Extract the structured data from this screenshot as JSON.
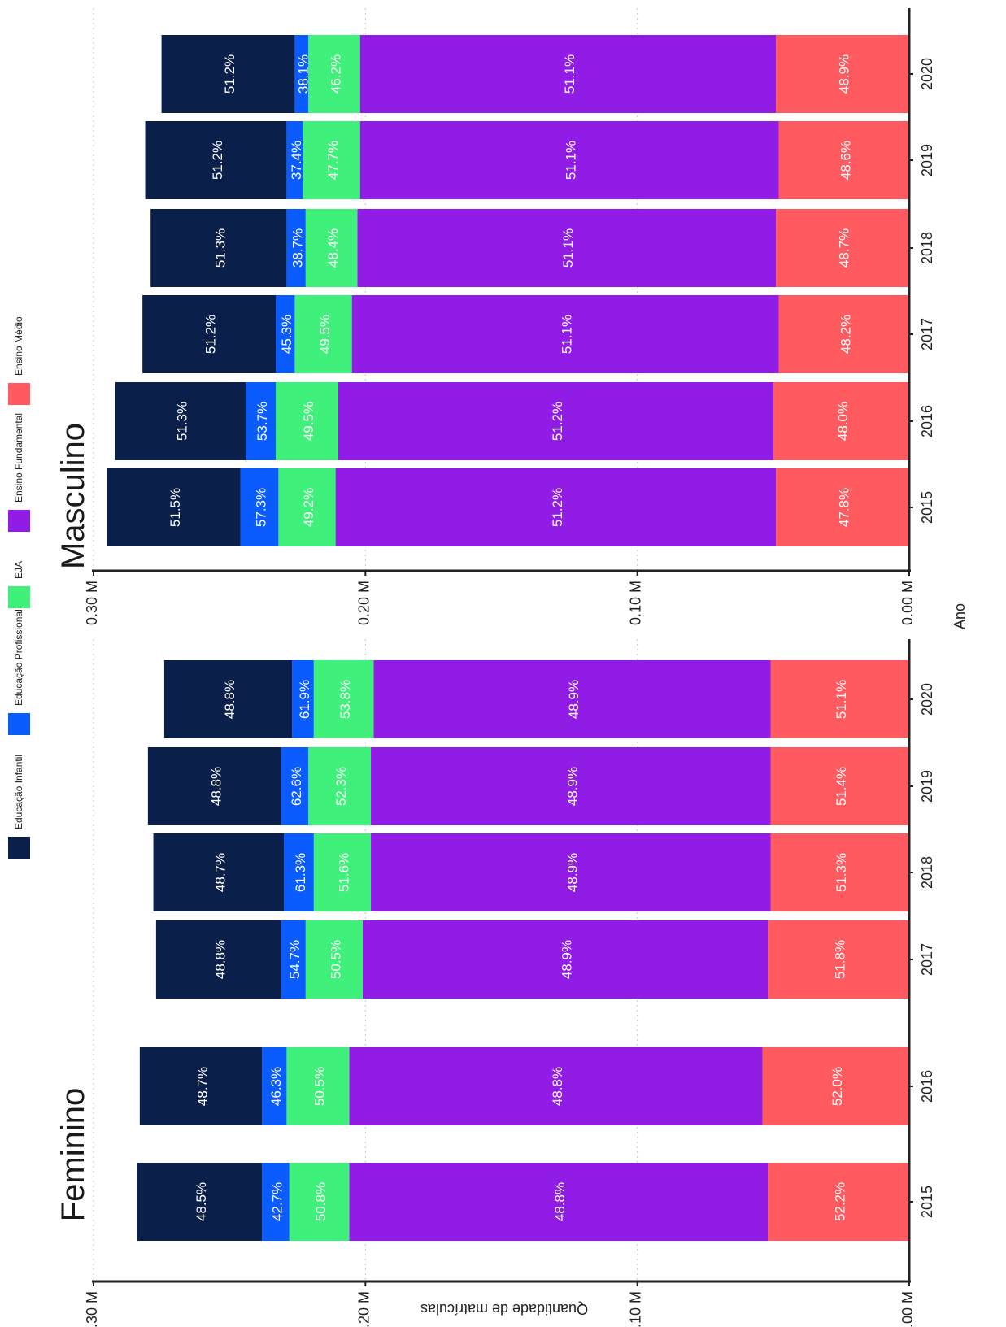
{
  "chart_data": {
    "type": "bar",
    "stacked": true,
    "orientation": "horizontal",
    "x_axis_title": "Quantidade de matrículas",
    "y_axis_title": "Ano",
    "x_ticks": [
      "0.00 M",
      "0.10 M",
      "0.20 M",
      "0.30 M"
    ],
    "xlim": [
      0,
      0.3
    ],
    "grid": true,
    "legend": {
      "position": "left",
      "items": [
        {
          "name": "Educação Infantil",
          "color": "#0b1f4b"
        },
        {
          "name": "Educação Profissional",
          "color": "#0b5cff"
        },
        {
          "name": "EJA",
          "color": "#3ff07a"
        },
        {
          "name": "Ensino Fundamental",
          "color": "#911ce6"
        },
        {
          "name": "Ensino Médio",
          "color": "#ff5a5f"
        }
      ]
    },
    "panels": [
      {
        "title": "Feminino",
        "categories": [
          "2015",
          "2016",
          "2017",
          "2018",
          "2019",
          "2020"
        ],
        "series": [
          {
            "name": "Ensino Médio",
            "color": "#ff5a5f",
            "values": [
              0.052,
              0.054,
              0.052,
              0.051,
              0.051,
              0.051
            ],
            "labels": [
              "52.2%",
              "52.0%",
              "51.8%",
              "51.3%",
              "51.4%",
              "51.1%"
            ]
          },
          {
            "name": "Ensino Fundamental",
            "color": "#911ce6",
            "values": [
              0.154,
              0.152,
              0.149,
              0.147,
              0.147,
              0.146
            ],
            "labels": [
              "48.8%",
              "48.8%",
              "48.9%",
              "48.9%",
              "48.9%",
              "48.9%"
            ]
          },
          {
            "name": "EJA",
            "color": "#3ff07a",
            "values": [
              0.022,
              0.023,
              0.021,
              0.021,
              0.023,
              0.022
            ],
            "labels": [
              "50.8%",
              "50.5%",
              "50.5%",
              "51.6%",
              "52.3%",
              "53.8%"
            ]
          },
          {
            "name": "Educação Profissional",
            "color": "#0b5cff",
            "values": [
              0.01,
              0.009,
              0.009,
              0.011,
              0.01,
              0.008
            ],
            "labels": [
              "42.7%",
              "46.3%",
              "54.7%",
              "61.3%",
              "62.6%",
              "61.9%"
            ]
          },
          {
            "name": "Educação Infantil",
            "color": "#0b1f4b",
            "values": [
              0.046,
              0.045,
              0.046,
              0.048,
              0.049,
              0.047
            ],
            "labels": [
              "48.5%",
              "48.7%",
              "48.8%",
              "48.7%",
              "48.8%",
              "48.8%"
            ]
          }
        ]
      },
      {
        "title": "Masculino",
        "categories": [
          "2015",
          "2016",
          "2017",
          "2018",
          "2019",
          "2020"
        ],
        "series": [
          {
            "name": "Ensino Médio",
            "color": "#ff5a5f",
            "values": [
              0.049,
              0.05,
              0.048,
              0.049,
              0.048,
              0.049
            ],
            "labels": [
              "47.8%",
              "48.0%",
              "48.2%",
              "48.7%",
              "48.6%",
              "48.9%"
            ]
          },
          {
            "name": "Ensino Fundamental",
            "color": "#911ce6",
            "values": [
              0.162,
              0.16,
              0.157,
              0.154,
              0.154,
              0.153
            ],
            "labels": [
              "51.2%",
              "51.2%",
              "51.1%",
              "51.1%",
              "51.1%",
              "51.1%"
            ]
          },
          {
            "name": "EJA",
            "color": "#3ff07a",
            "values": [
              0.021,
              0.023,
              0.021,
              0.019,
              0.021,
              0.019
            ],
            "labels": [
              "49.2%",
              "49.5%",
              "49.5%",
              "48.4%",
              "47.7%",
              "46.2%"
            ]
          },
          {
            "name": "Educação Profissional",
            "color": "#0b5cff",
            "values": [
              0.014,
              0.011,
              0.007,
              0.007,
              0.006,
              0.005
            ],
            "labels": [
              "57.3%",
              "53.7%",
              "45.3%",
              "38.7%",
              "37.4%",
              "38.1%"
            ]
          },
          {
            "name": "Educação Infantil",
            "color": "#0b1f4b",
            "values": [
              0.049,
              0.048,
              0.049,
              0.05,
              0.052,
              0.049
            ],
            "labels": [
              "51.5%",
              "51.3%",
              "51.2%",
              "51.3%",
              "51.2%",
              "51.2%"
            ]
          }
        ]
      }
    ]
  }
}
